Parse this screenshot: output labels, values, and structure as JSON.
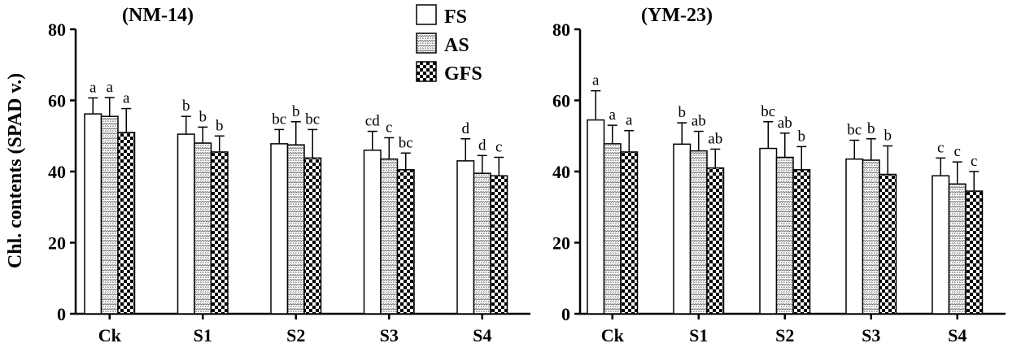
{
  "legend": [
    {
      "name": "FS",
      "pattern": "plain"
    },
    {
      "name": "AS",
      "pattern": "dots"
    },
    {
      "name": "GFS",
      "pattern": "checker"
    }
  ],
  "ylabel": "Chl. contents (SPAD v.)",
  "chart_data": [
    {
      "type": "bar",
      "title": "(NM-14)",
      "categories": [
        "Ck",
        "S1",
        "S2",
        "S3",
        "S4"
      ],
      "xlabel": "",
      "ylabel": "Chl. contents (SPAD v.)",
      "ylim": [
        0,
        80
      ],
      "yticks": [
        0,
        20,
        40,
        60,
        80
      ],
      "series": [
        {
          "name": "FS",
          "values": [
            56.2,
            50.5,
            47.8,
            46.0,
            43.0
          ],
          "errors": [
            4.5,
            5.0,
            4.0,
            5.3,
            6.2
          ],
          "labels": [
            "a",
            "b",
            "bc",
            "cd",
            "d"
          ]
        },
        {
          "name": "AS",
          "values": [
            55.5,
            48.0,
            47.5,
            43.5,
            39.5
          ],
          "errors": [
            5.3,
            4.5,
            6.5,
            6.0,
            5.0
          ],
          "labels": [
            "a",
            "b",
            "b",
            "c",
            "d"
          ]
        },
        {
          "name": "GFS",
          "values": [
            51.0,
            45.5,
            43.8,
            40.5,
            38.8
          ],
          "errors": [
            6.7,
            4.5,
            8.0,
            4.7,
            5.2
          ],
          "labels": [
            "a",
            "b",
            "bc",
            "bc",
            "c"
          ]
        }
      ]
    },
    {
      "type": "bar",
      "title": "(YM-23)",
      "categories": [
        "Ck",
        "S1",
        "S2",
        "S3",
        "S4"
      ],
      "xlabel": "",
      "ylabel": "",
      "ylim": [
        0,
        80
      ],
      "yticks": [
        0,
        20,
        40,
        60,
        80
      ],
      "series": [
        {
          "name": "FS",
          "values": [
            54.5,
            47.7,
            46.5,
            43.5,
            38.8
          ],
          "errors": [
            8.2,
            6.0,
            7.5,
            5.3,
            5.0
          ],
          "labels": [
            "a",
            "b",
            "bc",
            "bc",
            "c"
          ]
        },
        {
          "name": "AS",
          "values": [
            47.8,
            45.8,
            44.0,
            43.2,
            36.5
          ],
          "errors": [
            5.2,
            5.5,
            6.8,
            6.0,
            6.2
          ],
          "labels": [
            "a",
            "ab",
            "ab",
            "b",
            "c"
          ]
        },
        {
          "name": "GFS",
          "values": [
            45.5,
            41.0,
            40.5,
            39.2,
            34.5
          ],
          "errors": [
            6.0,
            5.3,
            6.5,
            8.0,
            5.5
          ],
          "labels": [
            "a",
            "ab",
            "b",
            "b",
            "c"
          ]
        }
      ]
    }
  ]
}
